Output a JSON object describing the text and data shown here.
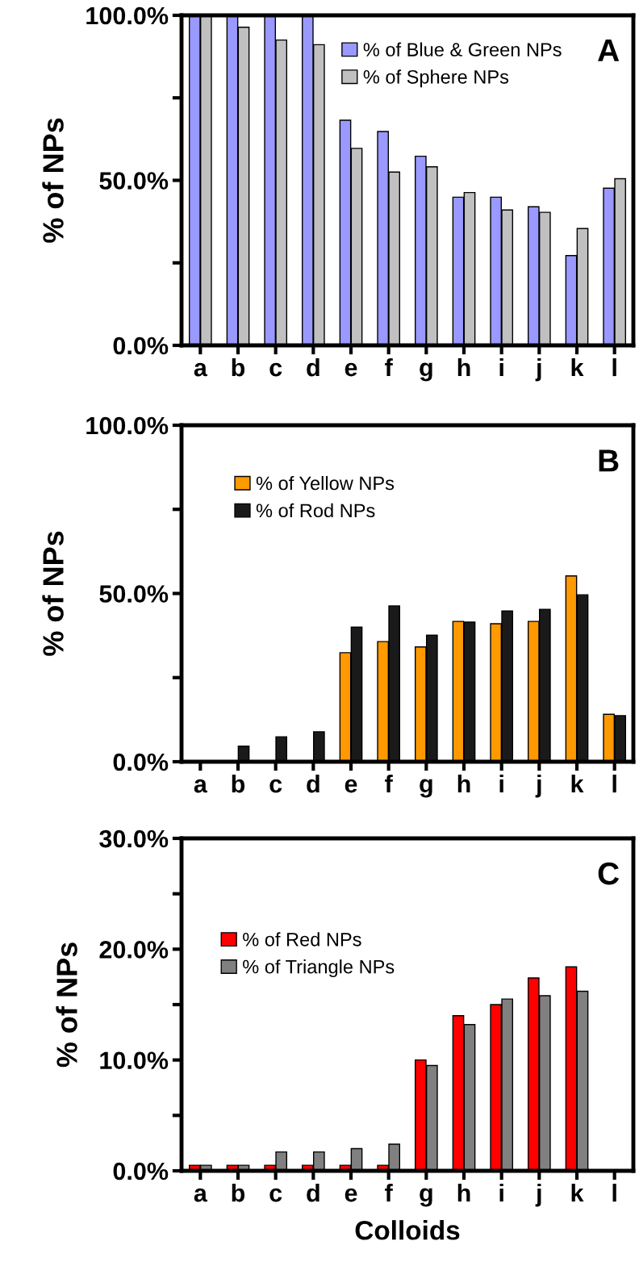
{
  "chart_data": [
    {
      "type": "bar",
      "ylabel": "% of NPs",
      "categories": [
        "a",
        "b",
        "c",
        "d",
        "e",
        "f",
        "g",
        "h",
        "i",
        "j",
        "k",
        "l"
      ],
      "series": [
        {
          "name": "% of Blue & Green NPs",
          "color": "#9999ff",
          "values": [
            100,
            100,
            100,
            100,
            68.2,
            64.8,
            57.3,
            44.9,
            44.9,
            42.0,
            27.2,
            47.6
          ]
        },
        {
          "name": "% of Sphere NPs",
          "color": "#c0c0c0",
          "values": [
            100,
            96.4,
            92.5,
            91.1,
            59.7,
            52.5,
            54.1,
            46.3,
            41.0,
            40.3,
            35.4,
            50.5
          ]
        }
      ],
      "ylim": [
        0,
        100
      ],
      "yticks": [
        {
          "value": 0,
          "label": "0.0%"
        },
        {
          "value": 25,
          "label": null
        },
        {
          "value": 50,
          "label": "50.0%"
        },
        {
          "value": 75,
          "label": null
        },
        {
          "value": 100,
          "label": "100.0%"
        }
      ],
      "legend": "top right",
      "grid": false,
      "annotations": [
        "A"
      ]
    },
    {
      "type": "bar",
      "ylabel": "% of NPs",
      "categories": [
        "a",
        "b",
        "c",
        "d",
        "e",
        "f",
        "g",
        "h",
        "i",
        "j",
        "k",
        "l"
      ],
      "series": [
        {
          "name": "% of Yellow NPs",
          "color": "#ff9900",
          "values": [
            0,
            0,
            0,
            0,
            32.4,
            35.7,
            34.1,
            41.7,
            41.0,
            41.7,
            55.2,
            14.1
          ]
        },
        {
          "name": "% of Rod NPs",
          "color": "#1a1a1a",
          "values": [
            0,
            4.6,
            7.4,
            8.9,
            40.0,
            46.3,
            37.6,
            41.5,
            44.8,
            45.3,
            49.6,
            13.7
          ]
        }
      ],
      "ylim": [
        0,
        100
      ],
      "yticks": [
        {
          "value": 0,
          "label": "0.0%"
        },
        {
          "value": 25,
          "label": null
        },
        {
          "value": 50,
          "label": "50.0%"
        },
        {
          "value": 75,
          "label": null
        },
        {
          "value": 100,
          "label": "100.0%"
        }
      ],
      "legend": "top left",
      "grid": false,
      "annotations": [
        "B"
      ]
    },
    {
      "type": "bar",
      "ylabel": "% of NPs",
      "xlabel": "Colloids",
      "categories": [
        "a",
        "b",
        "c",
        "d",
        "e",
        "f",
        "g",
        "h",
        "i",
        "j",
        "k",
        "l"
      ],
      "series": [
        {
          "name": "% of Red NPs",
          "color": "#ff0000",
          "values": [
            0.5,
            0.5,
            0.5,
            0.5,
            0.5,
            0.5,
            10.0,
            14.0,
            15.0,
            17.4,
            18.4,
            0
          ]
        },
        {
          "name": "% of Triangle NPs",
          "color": "#808080",
          "values": [
            0.5,
            0.5,
            1.7,
            1.7,
            2.0,
            2.4,
            9.5,
            13.2,
            15.5,
            15.8,
            16.2,
            0
          ]
        }
      ],
      "ylim": [
        0,
        30
      ],
      "yticks": [
        {
          "value": 0,
          "label": "0.0%"
        },
        {
          "value": 5,
          "label": null
        },
        {
          "value": 10,
          "label": "10.0%"
        },
        {
          "value": 15,
          "label": null
        },
        {
          "value": 20,
          "label": "20.0%"
        },
        {
          "value": 25,
          "label": null
        },
        {
          "value": 30,
          "label": "30.0%"
        }
      ],
      "legend": "center left",
      "grid": false,
      "annotations": [
        "C"
      ]
    }
  ]
}
